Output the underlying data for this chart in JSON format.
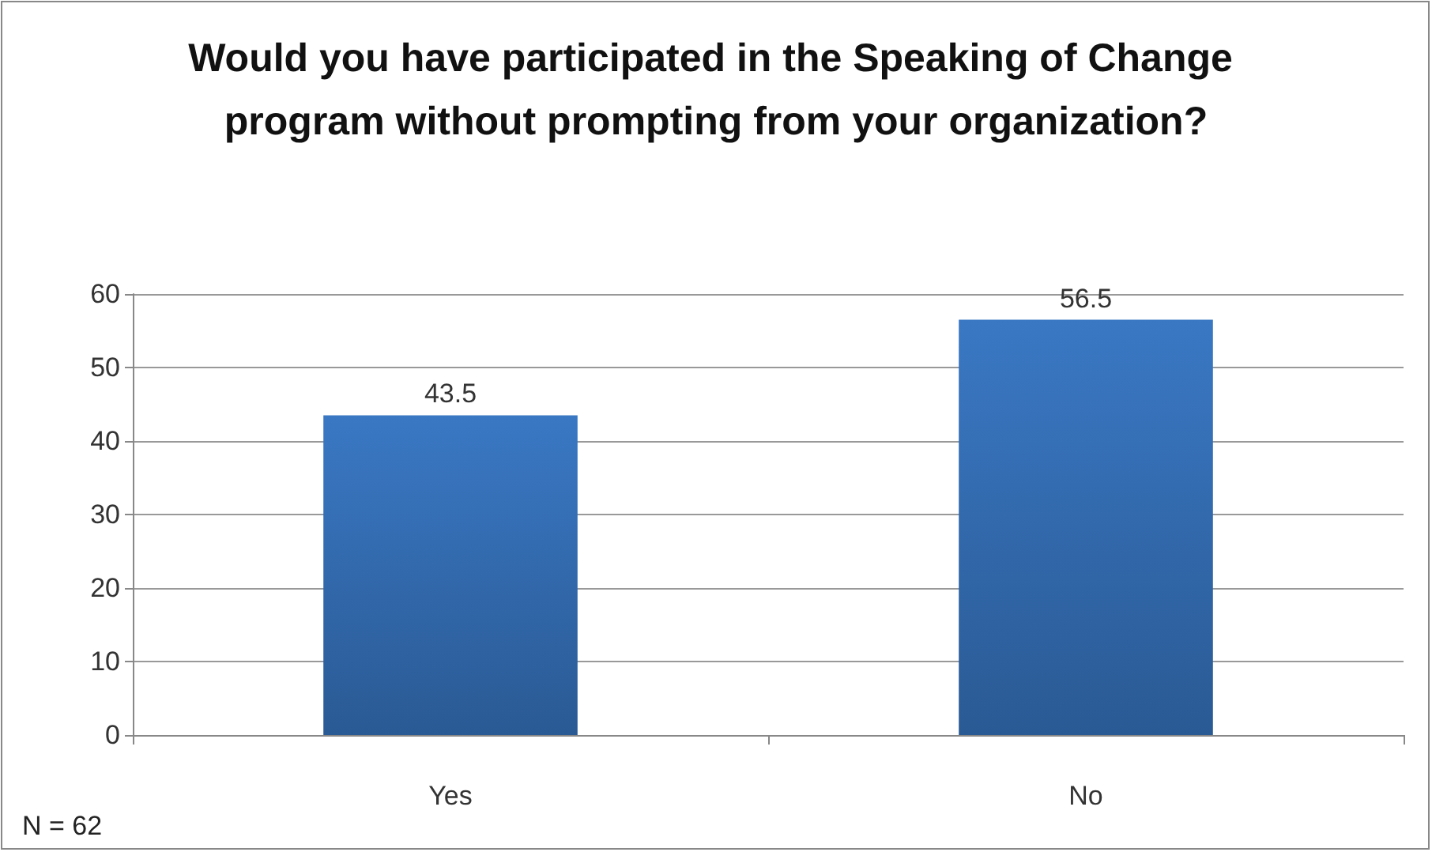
{
  "chart_data": {
    "type": "bar",
    "title": "Would you have participated in the Speaking of Change program without prompting from your organization?",
    "categories": [
      "Yes",
      "No"
    ],
    "values": [
      43.5,
      56.5
    ],
    "color": "#3a78c4",
    "ylim": [
      0,
      60
    ],
    "yticks": [
      0,
      10,
      20,
      30,
      40,
      50,
      60
    ],
    "grid": "y",
    "data_labels": true,
    "annotations": [
      "N = 62"
    ]
  }
}
